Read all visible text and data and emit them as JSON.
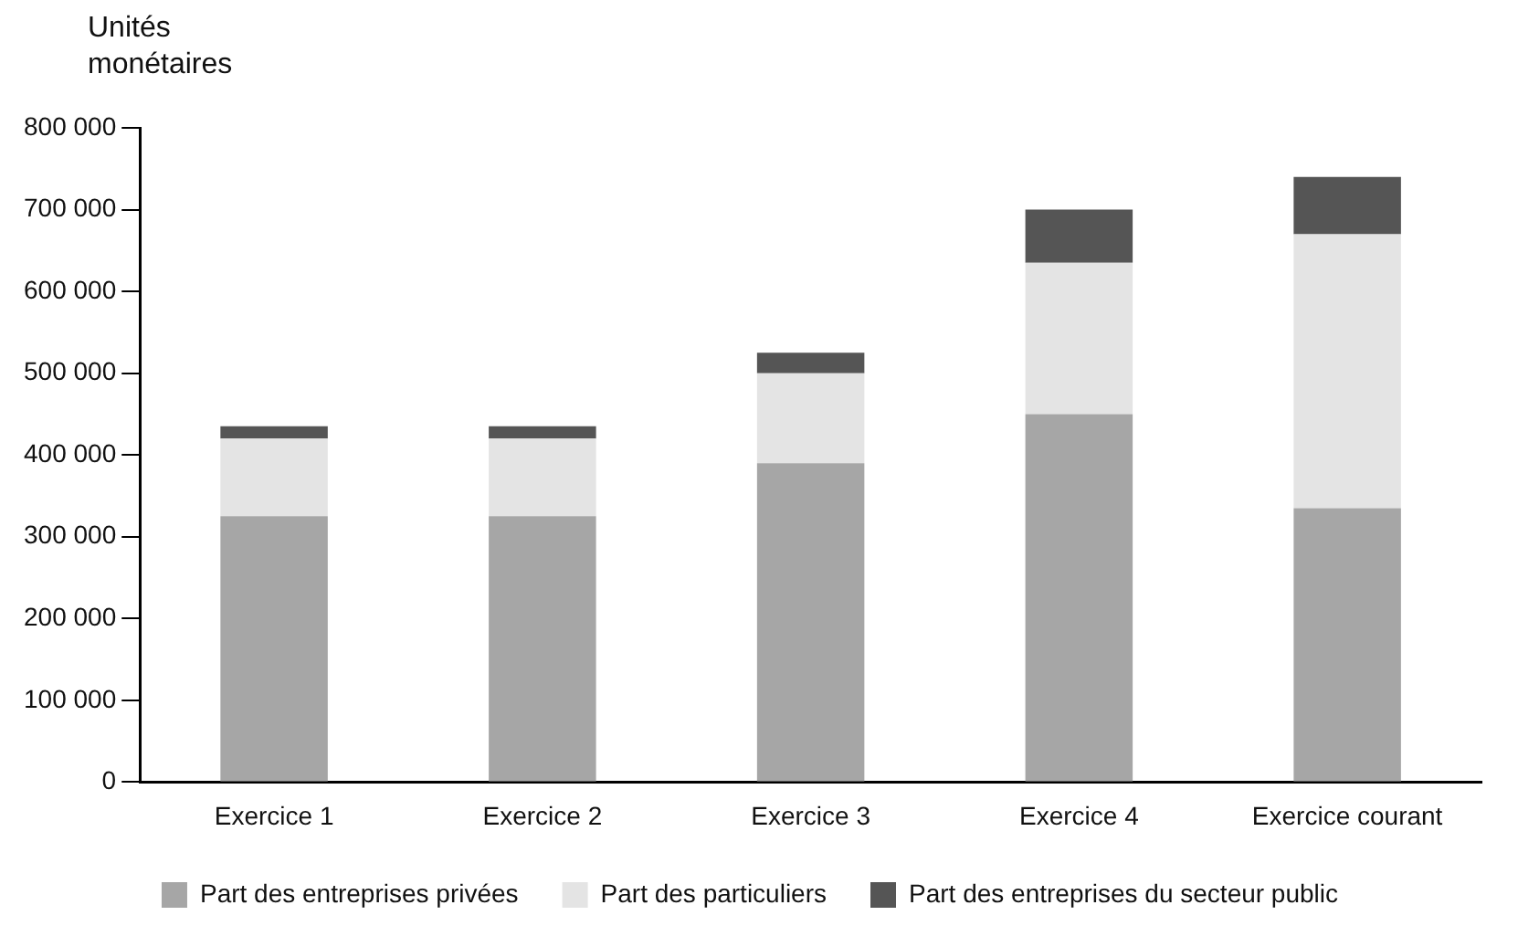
{
  "chart_data": {
    "type": "bar",
    "ylabel": "Unités monétaires",
    "categories": [
      "Exercice 1",
      "Exercice 2",
      "Exercice 3",
      "Exercice 4",
      "Exercice courant"
    ],
    "stacked": true,
    "grid": false,
    "legend": "bottom",
    "ylim": [
      0,
      800000
    ],
    "yticks": [
      {
        "value": 0,
        "label": "0"
      },
      {
        "value": 100000,
        "label": "100 000"
      },
      {
        "value": 200000,
        "label": "200 000"
      },
      {
        "value": 300000,
        "label": "300 000"
      },
      {
        "value": 400000,
        "label": "400 000"
      },
      {
        "value": 500000,
        "label": "500 000"
      },
      {
        "value": 600000,
        "label": "600 000"
      },
      {
        "value": 700000,
        "label": "700 000"
      },
      {
        "value": 800000,
        "label": "800 000"
      }
    ],
    "series": [
      {
        "name": "Part des entreprises privées",
        "color": "#a6a6a6",
        "values": [
          325000,
          325000,
          390000,
          450000,
          335000
        ]
      },
      {
        "name": "Part des particuliers",
        "color": "#e4e4e4",
        "values": [
          95000,
          95000,
          110000,
          185000,
          335000
        ]
      },
      {
        "name": "Part des entreprises du secteur public",
        "color": "#555555",
        "values": [
          15000,
          15000,
          25000,
          65000,
          70000
        ]
      }
    ]
  }
}
